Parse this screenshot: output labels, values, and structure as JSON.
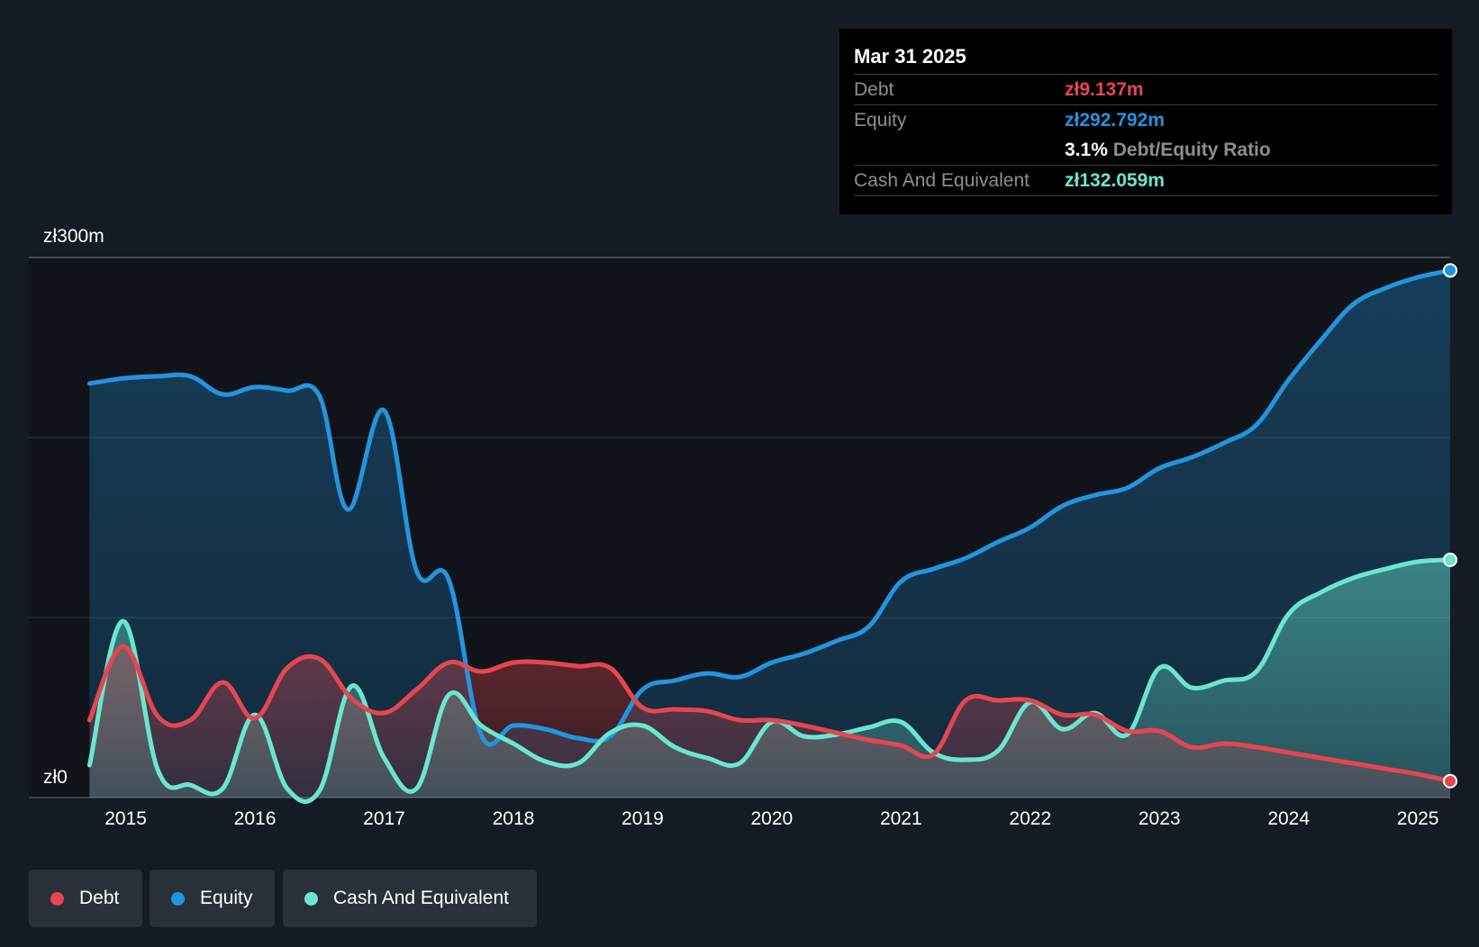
{
  "tooltip": {
    "date": "Mar 31 2025",
    "debt_label": "Debt",
    "debt_value": "zł9.137m",
    "equity_label": "Equity",
    "equity_value": "zł292.792m",
    "ratio_value": "3.1%",
    "ratio_label": "Debt/Equity Ratio",
    "cash_label": "Cash And Equivalent",
    "cash_value": "zł132.059m"
  },
  "legend": {
    "debt": "Debt",
    "equity": "Equity",
    "cash": "Cash And Equivalent"
  },
  "colors": {
    "debt": "#e5464f",
    "equity": "#2394df",
    "cash": "#6ae6cf",
    "background": "#151b24",
    "tooltip_bg": "#000000",
    "muted_text": "#8a8f96"
  },
  "chart_data": {
    "type": "area",
    "title": "",
    "xlabel": "",
    "ylabel": "",
    "y_tick_labels": [
      "zł300m",
      "zł0"
    ],
    "ylim": [
      0,
      300
    ],
    "xlim": [
      2014.25,
      2025.25
    ],
    "x_ticks": [
      2015,
      2016,
      2017,
      2018,
      2019,
      2020,
      2021,
      2022,
      2023,
      2024,
      2025
    ],
    "x_tick_labels": [
      "2015",
      "2016",
      "2017",
      "2018",
      "2019",
      "2020",
      "2021",
      "2022",
      "2023",
      "2024",
      "2025"
    ],
    "gridlines_at": [
      0,
      100,
      200,
      300
    ],
    "legend_position": "bottom-left",
    "series": [
      {
        "name": "Equity",
        "key": "equity",
        "points": [
          [
            2014.72,
            230
          ],
          [
            2015.0,
            233
          ],
          [
            2015.25,
            234
          ],
          [
            2015.5,
            234
          ],
          [
            2015.75,
            224
          ],
          [
            2016.0,
            228
          ],
          [
            2016.25,
            226
          ],
          [
            2016.5,
            223
          ],
          [
            2016.72,
            160
          ],
          [
            2017.0,
            215
          ],
          [
            2017.25,
            126
          ],
          [
            2017.5,
            121
          ],
          [
            2017.75,
            35
          ],
          [
            2018.0,
            40
          ],
          [
            2018.25,
            38
          ],
          [
            2018.5,
            33
          ],
          [
            2018.75,
            34
          ],
          [
            2019.0,
            60
          ],
          [
            2019.25,
            65
          ],
          [
            2019.5,
            69
          ],
          [
            2019.75,
            67
          ],
          [
            2020.0,
            75
          ],
          [
            2020.25,
            80
          ],
          [
            2020.5,
            87
          ],
          [
            2020.75,
            95
          ],
          [
            2021.0,
            120
          ],
          [
            2021.25,
            127
          ],
          [
            2021.5,
            133
          ],
          [
            2021.75,
            142
          ],
          [
            2022.0,
            150
          ],
          [
            2022.25,
            162
          ],
          [
            2022.5,
            168
          ],
          [
            2022.75,
            172
          ],
          [
            2023.0,
            183
          ],
          [
            2023.25,
            189
          ],
          [
            2023.5,
            197
          ],
          [
            2023.75,
            207
          ],
          [
            2024.0,
            232
          ],
          [
            2024.25,
            254
          ],
          [
            2024.5,
            274
          ],
          [
            2024.75,
            283
          ],
          [
            2025.0,
            289
          ],
          [
            2025.25,
            292.792
          ]
        ]
      },
      {
        "name": "Cash And Equivalent",
        "key": "cash",
        "points": [
          [
            2014.72,
            18
          ],
          [
            2014.98,
            98
          ],
          [
            2015.25,
            15
          ],
          [
            2015.5,
            7
          ],
          [
            2015.75,
            5
          ],
          [
            2016.0,
            46
          ],
          [
            2016.25,
            5
          ],
          [
            2016.5,
            4
          ],
          [
            2016.75,
            62
          ],
          [
            2017.0,
            22
          ],
          [
            2017.25,
            5
          ],
          [
            2017.5,
            57
          ],
          [
            2017.75,
            40
          ],
          [
            2018.0,
            30
          ],
          [
            2018.25,
            20
          ],
          [
            2018.5,
            19
          ],
          [
            2018.75,
            36
          ],
          [
            2019.0,
            40
          ],
          [
            2019.25,
            28
          ],
          [
            2019.5,
            22
          ],
          [
            2019.75,
            19
          ],
          [
            2020.0,
            42
          ],
          [
            2020.25,
            34
          ],
          [
            2020.5,
            35
          ],
          [
            2020.75,
            39
          ],
          [
            2021.0,
            42
          ],
          [
            2021.25,
            25
          ],
          [
            2021.5,
            21
          ],
          [
            2021.75,
            26
          ],
          [
            2022.0,
            53
          ],
          [
            2022.25,
            38
          ],
          [
            2022.5,
            47
          ],
          [
            2022.75,
            35
          ],
          [
            2023.0,
            72
          ],
          [
            2023.25,
            61
          ],
          [
            2023.5,
            65
          ],
          [
            2023.75,
            70
          ],
          [
            2024.0,
            102
          ],
          [
            2024.25,
            114
          ],
          [
            2024.5,
            122
          ],
          [
            2024.75,
            127
          ],
          [
            2025.0,
            131
          ],
          [
            2025.25,
            132.059
          ]
        ]
      },
      {
        "name": "Debt",
        "key": "debt",
        "points": [
          [
            2014.72,
            43
          ],
          [
            2014.98,
            84
          ],
          [
            2015.25,
            45
          ],
          [
            2015.5,
            43
          ],
          [
            2015.75,
            64
          ],
          [
            2016.0,
            44
          ],
          [
            2016.25,
            72
          ],
          [
            2016.5,
            77
          ],
          [
            2016.75,
            55
          ],
          [
            2017.0,
            47
          ],
          [
            2017.25,
            60
          ],
          [
            2017.5,
            75
          ],
          [
            2017.75,
            70
          ],
          [
            2018.0,
            75
          ],
          [
            2018.25,
            75
          ],
          [
            2018.5,
            73
          ],
          [
            2018.75,
            72
          ],
          [
            2019.0,
            50
          ],
          [
            2019.25,
            49
          ],
          [
            2019.5,
            48
          ],
          [
            2019.75,
            43
          ],
          [
            2020.0,
            43
          ],
          [
            2020.25,
            40
          ],
          [
            2020.5,
            36
          ],
          [
            2020.75,
            32
          ],
          [
            2021.0,
            29
          ],
          [
            2021.25,
            24
          ],
          [
            2021.5,
            54
          ],
          [
            2021.75,
            54
          ],
          [
            2022.0,
            54
          ],
          [
            2022.25,
            46
          ],
          [
            2022.5,
            46
          ],
          [
            2022.75,
            37
          ],
          [
            2023.0,
            37
          ],
          [
            2023.25,
            28
          ],
          [
            2023.5,
            30
          ],
          [
            2023.75,
            28
          ],
          [
            2024.0,
            25
          ],
          [
            2024.25,
            22
          ],
          [
            2024.5,
            19
          ],
          [
            2024.75,
            16
          ],
          [
            2025.0,
            13
          ],
          [
            2025.25,
            9.137
          ]
        ]
      }
    ]
  }
}
